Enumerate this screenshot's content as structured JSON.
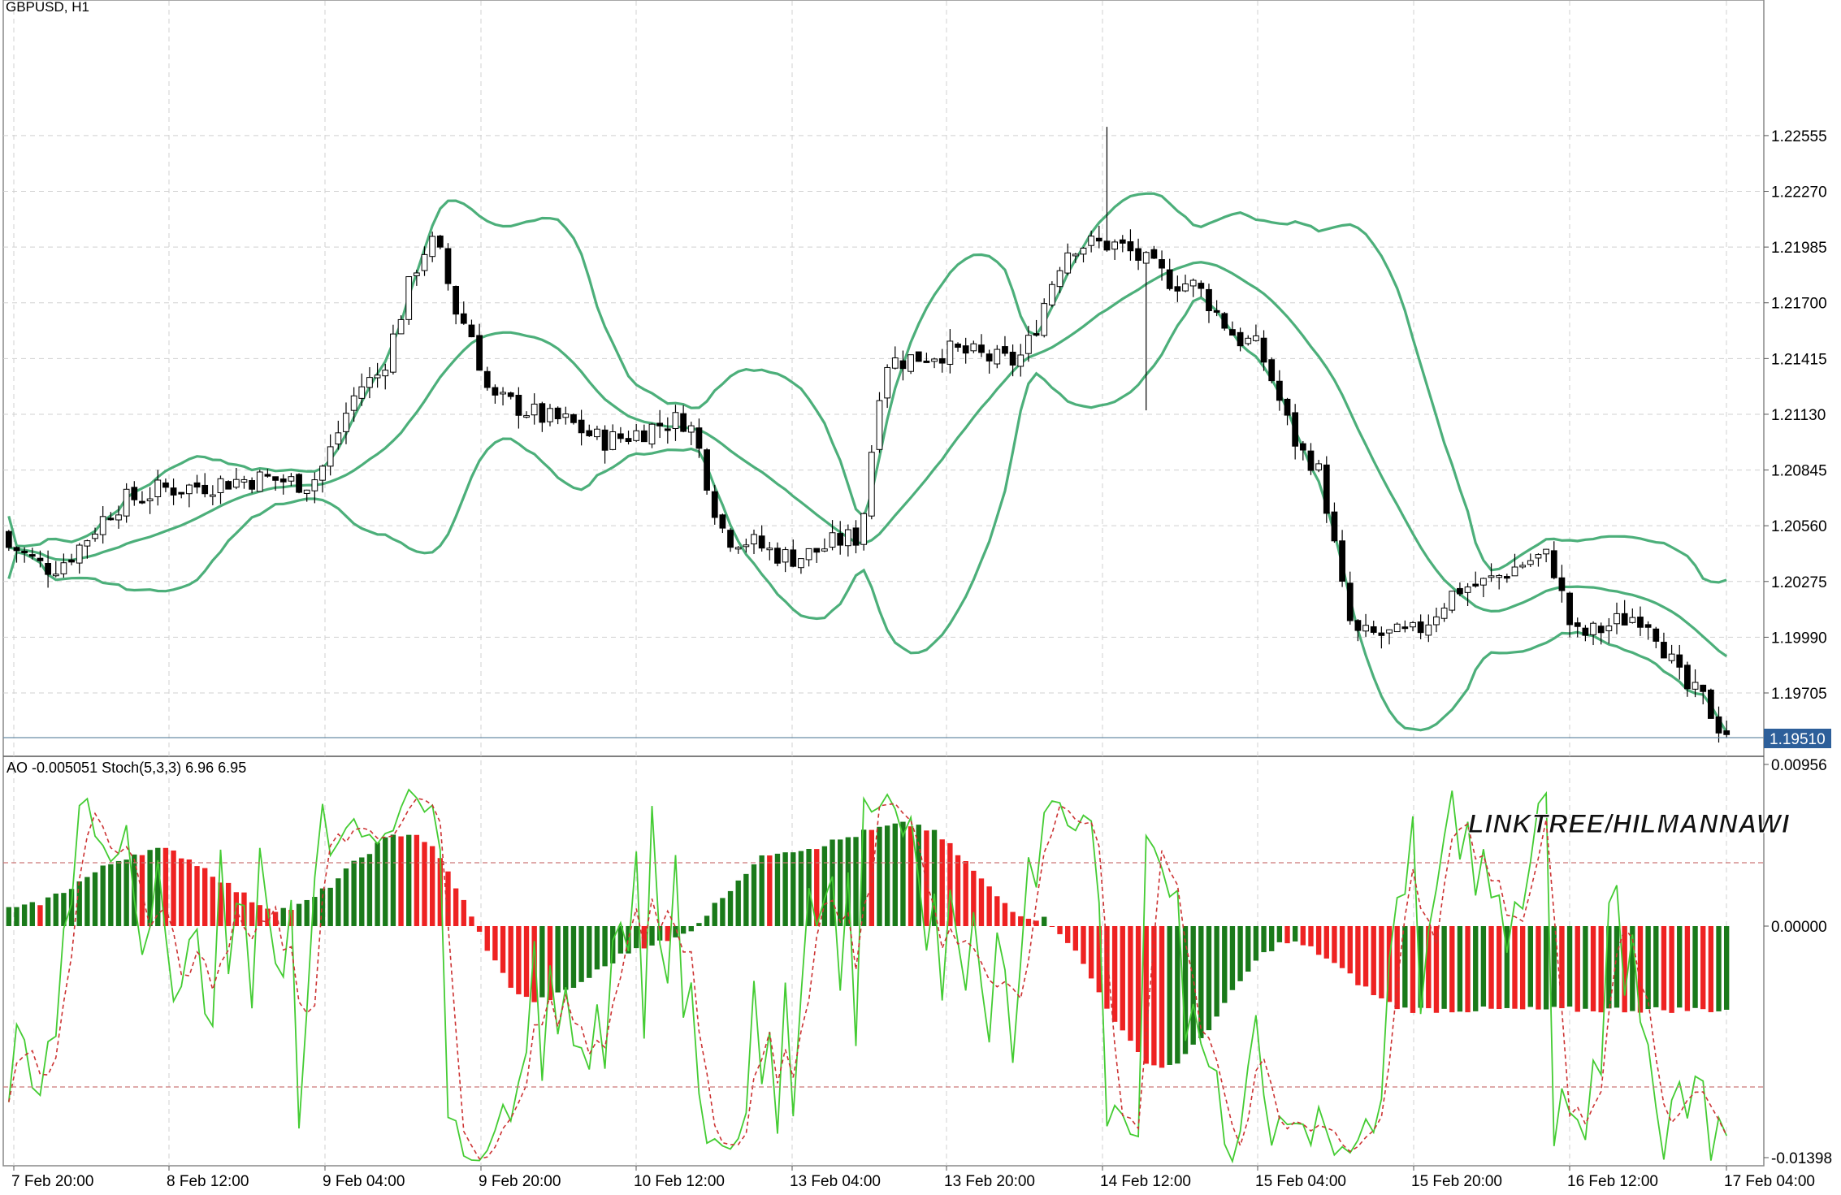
{
  "main_panel": {
    "symbol_label": "GBPUSD, H1",
    "price_ticks": [
      "1.22555",
      "1.22270",
      "1.21985",
      "1.21700",
      "1.21415",
      "1.21130",
      "1.20845",
      "1.20560",
      "1.20275",
      "1.19990",
      "1.19705"
    ],
    "current_price_label": "1.19510",
    "current_price_color": "#2d5f9a"
  },
  "sub_panel": {
    "indicator_label": "AO -0.005051 Stoch(5,3,3) 6.96 6.95",
    "value_ticks": [
      "0.00956",
      "0.00000",
      "-0.01398"
    ],
    "watermark": "LINKTREE/HILMANNAWI"
  },
  "time_axis": {
    "labels": [
      "7 Feb 20:00",
      "8 Feb 12:00",
      "9 Feb 04:00",
      "9 Feb 20:00",
      "10 Feb 12:00",
      "13 Feb 04:00",
      "13 Feb 20:00",
      "14 Feb 12:00",
      "15 Feb 04:00",
      "15 Feb 20:00",
      "16 Feb 12:00",
      "17 Feb 04:00"
    ]
  },
  "colors": {
    "bollinger": "#4caf7a",
    "ao_up": "#1a7a1a",
    "ao_down": "#ee2222",
    "stoch_main": "#44cc33",
    "stoch_signal": "#cc3333",
    "grid": "#d0d0d0",
    "level": "#cc7777"
  },
  "chart_data": [
    {
      "type": "candlestick",
      "title": "GBPUSD, H1",
      "ylim": [
        1.1951,
        1.227
      ],
      "indicators": [
        "Bollinger Bands"
      ],
      "close_keypoints": [
        {
          "x": "7 Feb 20:00",
          "y": 1.2045
        },
        {
          "x": "8 Feb 12:00",
          "y": 1.2075
        },
        {
          "x": "9 Feb 04:00",
          "y": 1.2085
        },
        {
          "x": "9 Feb 08:00",
          "y": 1.22
        },
        {
          "x": "9 Feb 20:00",
          "y": 1.212
        },
        {
          "x": "10 Feb 12:00",
          "y": 1.211
        },
        {
          "x": "13 Feb 04:00",
          "y": 1.205
        },
        {
          "x": "13 Feb 20:00",
          "y": 1.214
        },
        {
          "x": "14 Feb 12:00",
          "y": 1.22
        },
        {
          "x": "15 Feb 04:00",
          "y": 1.2135
        },
        {
          "x": "15 Feb 20:00",
          "y": 1.2
        },
        {
          "x": "16 Feb 12:00",
          "y": 1.204
        },
        {
          "x": "17 Feb 04:00",
          "y": 1.1951
        }
      ]
    },
    {
      "type": "bar",
      "title": "AO -0.005051 Stoch(5,3,3) 6.96 6.95",
      "ylim": [
        -0.01398,
        0.00956
      ],
      "series": [
        {
          "name": "AO",
          "keypoints": [
            {
              "x": "7 Feb 20:00",
              "y": 0.001
            },
            {
              "x": "8 Feb 12:00",
              "y": 0.0045
            },
            {
              "x": "9 Feb 04:00",
              "y": 0.001
            },
            {
              "x": "9 Feb 20:00",
              "y": 0.0055
            },
            {
              "x": "10 Feb 12:00",
              "y": -0.0045
            },
            {
              "x": "13 Feb 04:00",
              "y": -0.001
            },
            {
              "x": "13 Feb 20:00",
              "y": 0.0045
            },
            {
              "x": "14 Feb 12:00",
              "y": 0.006
            },
            {
              "x": "15 Feb 04:00",
              "y": 0.0005
            },
            {
              "x": "15 Feb 20:00",
              "y": -0.0085
            },
            {
              "x": "16 Feb 12:00",
              "y": -0.001
            },
            {
              "x": "17 Feb 04:00",
              "y": -0.005051
            }
          ]
        },
        {
          "name": "Stoch main",
          "value": 6.96
        },
        {
          "name": "Stoch signal",
          "value": 6.95
        }
      ]
    }
  ]
}
